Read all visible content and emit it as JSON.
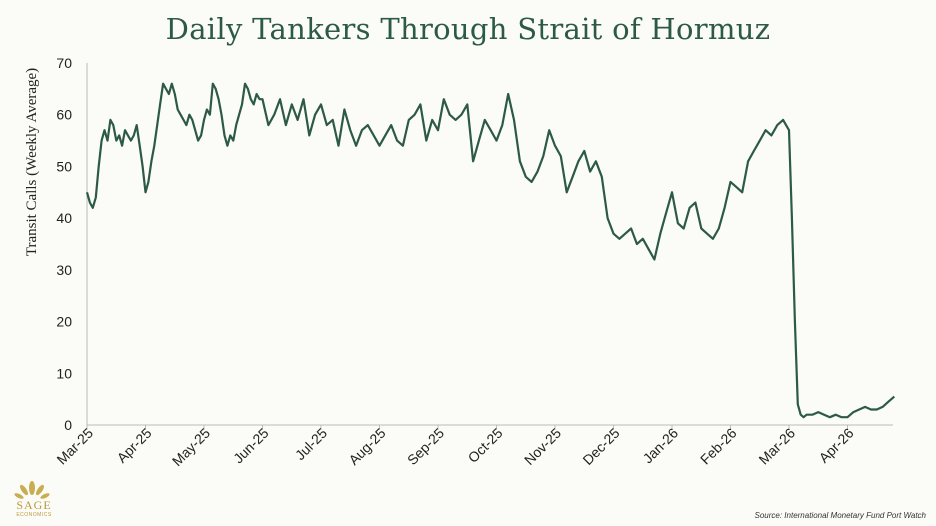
{
  "chart_data": {
    "type": "line",
    "title": "Daily Tankers Through Strait of Hormuz",
    "xlabel": "",
    "ylabel": "Transit Calls (Weekly Average)",
    "ylim": [
      0,
      70
    ],
    "yticks": [
      0,
      10,
      20,
      30,
      40,
      50,
      60,
      70
    ],
    "xticks": [
      "Mar-25",
      "Apr-25",
      "May-25",
      "Jun-25",
      "Jul-25",
      "Aug-25",
      "Sep-25",
      "Oct-25",
      "Nov-25",
      "Dec-25",
      "Jan-26",
      "Feb-26",
      "Mar-26",
      "Apr-26"
    ],
    "x_start": "Mar-25",
    "x_unit": "months since Mar-25",
    "line_color": "#2d5a47",
    "series": [
      {
        "name": "Transit Calls (Weekly Average)",
        "x": [
          0,
          0.05,
          0.1,
          0.15,
          0.2,
          0.25,
          0.3,
          0.35,
          0.4,
          0.45,
          0.5,
          0.55,
          0.6,
          0.65,
          0.7,
          0.75,
          0.8,
          0.85,
          0.9,
          0.95,
          1.0,
          1.05,
          1.1,
          1.15,
          1.2,
          1.25,
          1.3,
          1.35,
          1.4,
          1.45,
          1.5,
          1.55,
          1.6,
          1.65,
          1.7,
          1.75,
          1.8,
          1.85,
          1.9,
          1.95,
          2.0,
          2.05,
          2.1,
          2.15,
          2.2,
          2.25,
          2.3,
          2.35,
          2.4,
          2.45,
          2.5,
          2.55,
          2.6,
          2.65,
          2.7,
          2.75,
          2.8,
          2.85,
          2.9,
          2.95,
          3.0,
          3.1,
          3.2,
          3.3,
          3.4,
          3.5,
          3.6,
          3.7,
          3.8,
          3.9,
          4.0,
          4.1,
          4.2,
          4.3,
          4.4,
          4.5,
          4.6,
          4.7,
          4.8,
          4.9,
          5.0,
          5.1,
          5.2,
          5.3,
          5.4,
          5.5,
          5.6,
          5.7,
          5.8,
          5.9,
          6.0,
          6.1,
          6.2,
          6.3,
          6.4,
          6.5,
          6.6,
          6.7,
          6.8,
          6.9,
          7.0,
          7.1,
          7.2,
          7.3,
          7.4,
          7.5,
          7.6,
          7.7,
          7.8,
          7.9,
          8.0,
          8.1,
          8.2,
          8.3,
          8.4,
          8.5,
          8.6,
          8.7,
          8.8,
          8.9,
          9.0,
          9.1,
          9.2,
          9.3,
          9.4,
          9.5,
          9.6,
          9.7,
          9.8,
          9.9,
          10.0,
          10.1,
          10.2,
          10.3,
          10.4,
          10.5,
          10.6,
          10.7,
          10.8,
          10.9,
          11.0,
          11.1,
          11.2,
          11.3,
          11.4,
          11.5,
          11.6,
          11.7,
          11.8,
          11.9,
          12.0,
          12.05,
          12.1,
          12.15,
          12.2,
          12.25,
          12.3,
          12.4,
          12.5,
          12.6,
          12.7,
          12.8,
          12.9,
          13.0,
          13.1,
          13.2,
          13.3,
          13.4,
          13.5,
          13.6,
          13.7,
          13.8
        ],
        "values": [
          45,
          43,
          42,
          44,
          50,
          55,
          57,
          55,
          59,
          58,
          55,
          56,
          54,
          57,
          56,
          55,
          56,
          58,
          54,
          50,
          45,
          47,
          51,
          54,
          58,
          62,
          66,
          65,
          64,
          66,
          64,
          61,
          60,
          59,
          58,
          60,
          59,
          57,
          55,
          56,
          59,
          61,
          60,
          66,
          65,
          63,
          60,
          56,
          54,
          56,
          55,
          58,
          60,
          62,
          66,
          65,
          63,
          62,
          64,
          63,
          63,
          58,
          60,
          63,
          58,
          62,
          59,
          63,
          56,
          60,
          62,
          58,
          59,
          54,
          61,
          57,
          54,
          57,
          58,
          56,
          54,
          56,
          58,
          55,
          54,
          59,
          60,
          62,
          55,
          59,
          57,
          63,
          60,
          59,
          60,
          62,
          51,
          55,
          59,
          57,
          55,
          58,
          64,
          59,
          51,
          48,
          47,
          49,
          52,
          57,
          54,
          52,
          45,
          48,
          51,
          53,
          49,
          51,
          48,
          40,
          37,
          36,
          37,
          38,
          35,
          36,
          34,
          32,
          37,
          41,
          45,
          39,
          38,
          42,
          43,
          38,
          37,
          36,
          38,
          42,
          47,
          46,
          45,
          51,
          53,
          55,
          57,
          56,
          58,
          59,
          57,
          40,
          20,
          4,
          2,
          1.5,
          2,
          2,
          2.5,
          2,
          1.5,
          2,
          1.5,
          1.5,
          2.5,
          3,
          3.5,
          3,
          3,
          3.5,
          4.5,
          5.5
        ]
      }
    ]
  },
  "source": "Source: International Monetary Fund Port Watch",
  "logo": {
    "name": "SAGE",
    "subtitle": "ECONOMICS"
  }
}
